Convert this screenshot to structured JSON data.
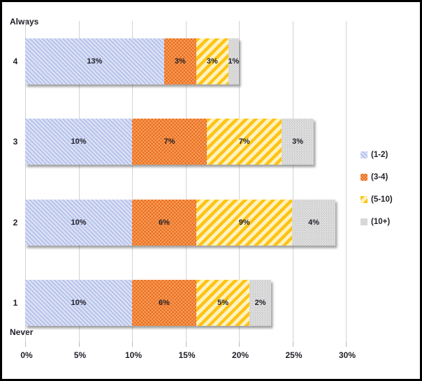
{
  "chart_data": {
    "type": "bar",
    "orientation": "horizontal-stacked",
    "categories": [
      "4",
      "3",
      "2",
      "1"
    ],
    "series": [
      {
        "name": "(1-2)",
        "values": [
          13,
          10,
          10,
          10
        ],
        "pattern": "diag-down",
        "base_color": "#D9DFF4",
        "alt_color": "#AEBBE8"
      },
      {
        "name": "(3-4)",
        "values": [
          3,
          7,
          6,
          6
        ],
        "pattern": "checker",
        "base_color": "#F99E58",
        "alt_color": "#E86F22"
      },
      {
        "name": "(5-10)",
        "values": [
          3,
          7,
          9,
          5
        ],
        "pattern": "diag-up",
        "base_color": "#FFF2BE",
        "alt_color": "#FEC315"
      },
      {
        "name": "(10+)",
        "values": [
          1,
          3,
          4,
          2
        ],
        "pattern": "checker-fine",
        "base_color": "#E8E8E8",
        "alt_color": "#C8C8C8"
      }
    ],
    "data_label_suffix": "%",
    "axis_top_label": "Always",
    "axis_bottom_label": "Never",
    "x_ticks": [
      "0%",
      "5%",
      "10%",
      "15%",
      "20%",
      "25%",
      "30%"
    ],
    "x_range": [
      0,
      30
    ],
    "grid": true,
    "gridline_color": "#d3d3d3",
    "legend_position": "right",
    "legend_entries": [
      "(1-2)",
      "(3-4)",
      "(5-10)",
      "(10+)"
    ],
    "text_color": "#1f1f28"
  }
}
